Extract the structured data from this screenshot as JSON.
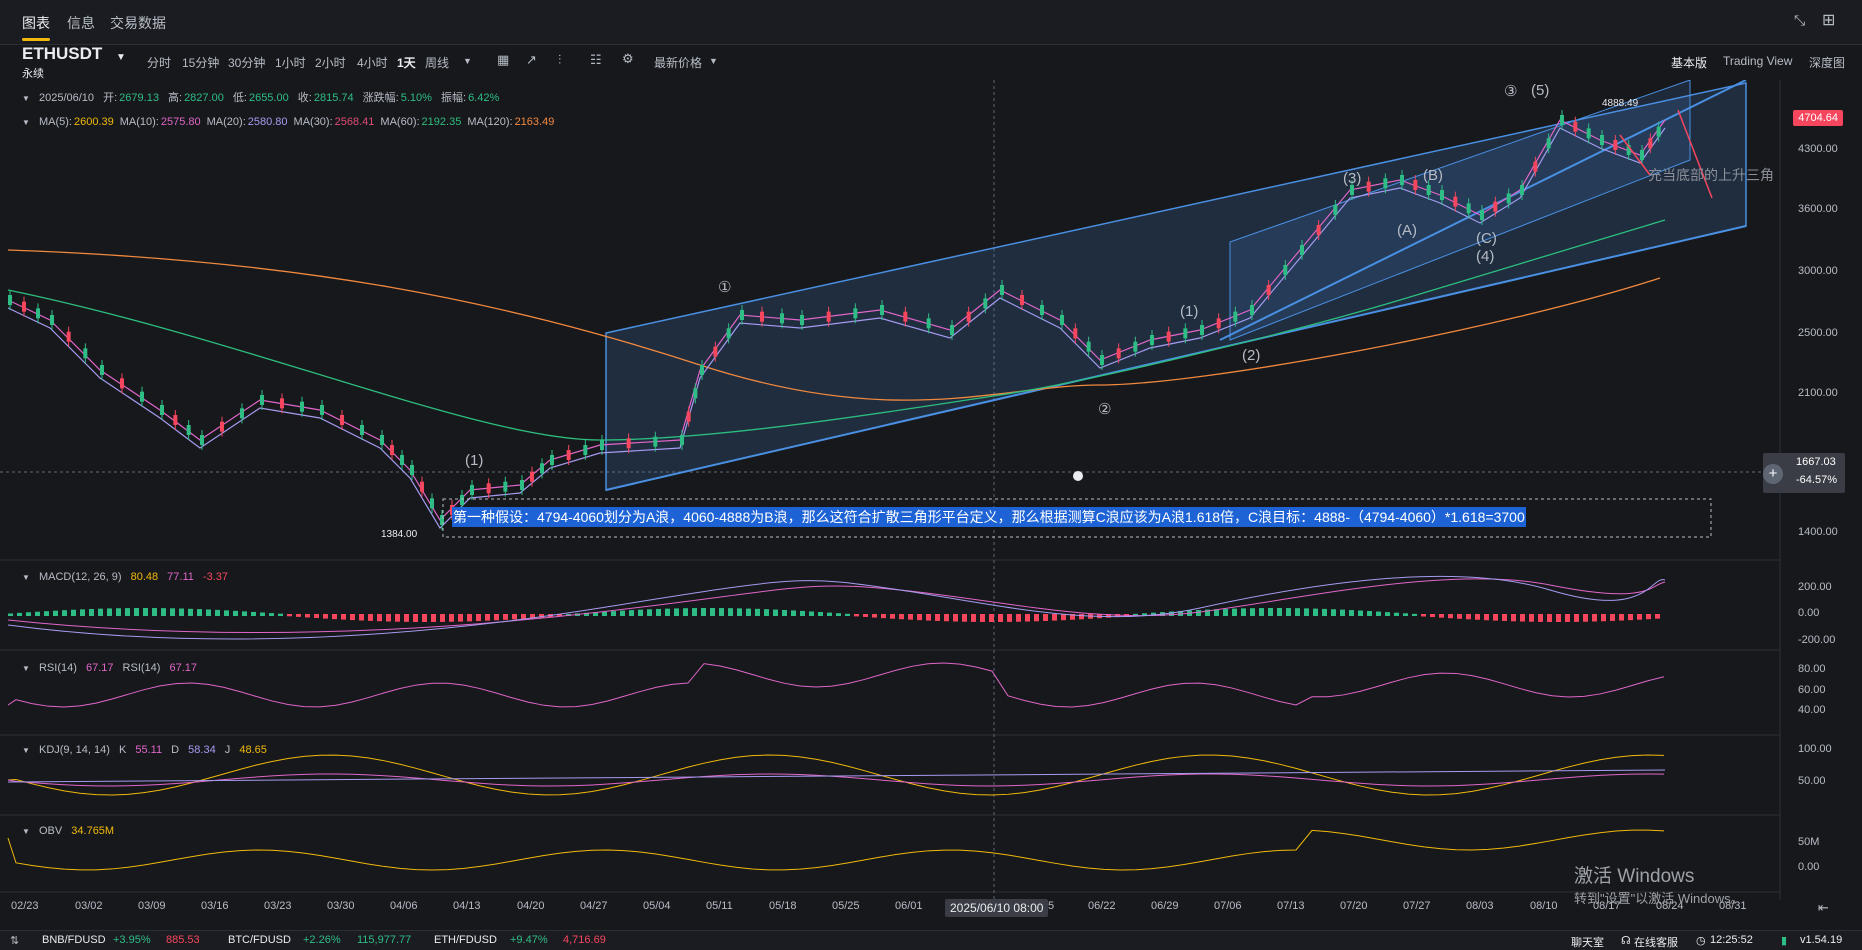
{
  "tabs": [
    "图表",
    "信息",
    "交易数据"
  ],
  "symbol": {
    "name": "ETHUSDT",
    "sub": "永续"
  },
  "intervals": [
    "分时",
    "15分钟",
    "30分钟",
    "1小时",
    "2小时",
    "4小时",
    "1天",
    "周线"
  ],
  "selected_interval": "1天",
  "latest_price_label": "最新价格",
  "view_modes": [
    "基本版",
    "Trading View",
    "深度图"
  ],
  "ohlc": {
    "date": "2025/06/10",
    "open_l": "开:",
    "open": "2679.13",
    "high_l": "高:",
    "high": "2827.00",
    "low_l": "低:",
    "low": "2655.00",
    "close_l": "收:",
    "close": "2815.74",
    "chg_l": "涨跌幅:",
    "chg": "5.10%",
    "amp_l": "振幅:",
    "amp": "6.42%"
  },
  "ma": [
    {
      "label": "MA(5):",
      "value": "2600.39",
      "color": "#f0b90b"
    },
    {
      "label": "MA(10):",
      "value": "2575.80",
      "color": "#e066c8"
    },
    {
      "label": "MA(20):",
      "value": "2580.80",
      "color": "#a59bf0"
    },
    {
      "label": "MA(30):",
      "value": "2568.41",
      "color": "#e04b76"
    },
    {
      "label": "MA(60):",
      "value": "2192.35",
      "color": "#2dbd7e"
    },
    {
      "label": "MA(120):",
      "value": "2163.49",
      "color": "#f0883e"
    }
  ],
  "price_axis": [
    "4300.00",
    "3600.00",
    "3000.00",
    "2500.00",
    "2100.00",
    "1400.00"
  ],
  "current_price": "4704.64",
  "cursor_price": "1667.03",
  "cursor_pct": "-64.57%",
  "low_label": "1384.00",
  "high_label": "4888.49",
  "annotation": "第一种假设：4794-4060划分为A浪，4060-4888为B浪，那么这符合扩散三角形平台定义，那么根据测算C浪应该为A浪1.618倍，C浪目标：4888-（4794-4060）*1.618=3700",
  "annotation2": "充当底部的上升三角",
  "wave_labels": [
    "①",
    "②",
    "③",
    "(5)",
    "(1)",
    "(2)",
    "(3)",
    "(4)",
    "(A)",
    "(B)",
    "(C)",
    "(1)"
  ],
  "macd": {
    "label": "MACD(12, 26, 9)",
    "v1": "80.48",
    "v2": "77.11",
    "v3": "-3.37",
    "axis": [
      "200.00",
      "0.00",
      "-200.00"
    ]
  },
  "rsi": {
    "label1": "RSI(14)",
    "v1": "67.17",
    "label2": "RSI(14)",
    "v2": "67.17",
    "axis": [
      "80.00",
      "60.00",
      "40.00"
    ]
  },
  "kdj": {
    "label": "KDJ(9, 14, 14)",
    "k_l": "K",
    "k": "55.11",
    "d_l": "D",
    "d": "58.34",
    "j_l": "J",
    "j": "48.65",
    "axis": [
      "100.00",
      "50.00"
    ]
  },
  "obv": {
    "label": "OBV",
    "v": "34.765M",
    "axis": [
      "50M",
      "0.00"
    ]
  },
  "date_axis": [
    "02/23",
    "03/02",
    "03/09",
    "03/16",
    "03/23",
    "03/30",
    "04/06",
    "04/13",
    "04/20",
    "04/27",
    "05/04",
    "05/11",
    "05/18",
    "05/25",
    "06/01",
    "5",
    "06/22",
    "06/29",
    "07/06",
    "07/13",
    "07/20",
    "07/27",
    "08/03",
    "08/10",
    "08/17",
    "08/24",
    "08/31"
  ],
  "cursor_date": "2025/06/10 08:00",
  "tickers": [
    {
      "sym": "BNB/FDUSD",
      "chg": "+3.95%",
      "price": "885.53"
    },
    {
      "sym": "BTC/FDUSD",
      "chg": "+2.26%",
      "price": "115,977.77"
    },
    {
      "sym": "ETH/FDUSD",
      "chg": "+9.47%",
      "price": "4,716.69"
    }
  ],
  "footer_right": {
    "chat": "聊天室",
    "service": "在线客服",
    "time": "12:25:52",
    "version": "v1.54.19"
  },
  "watermark": {
    "title": "激活 Windows",
    "sub": "转到\"设置\"以激活 Windows。"
  },
  "colors": {
    "up": "#2ebd85",
    "down": "#f6465d",
    "accent": "#f0b90b",
    "channel": "#4a90e2"
  }
}
